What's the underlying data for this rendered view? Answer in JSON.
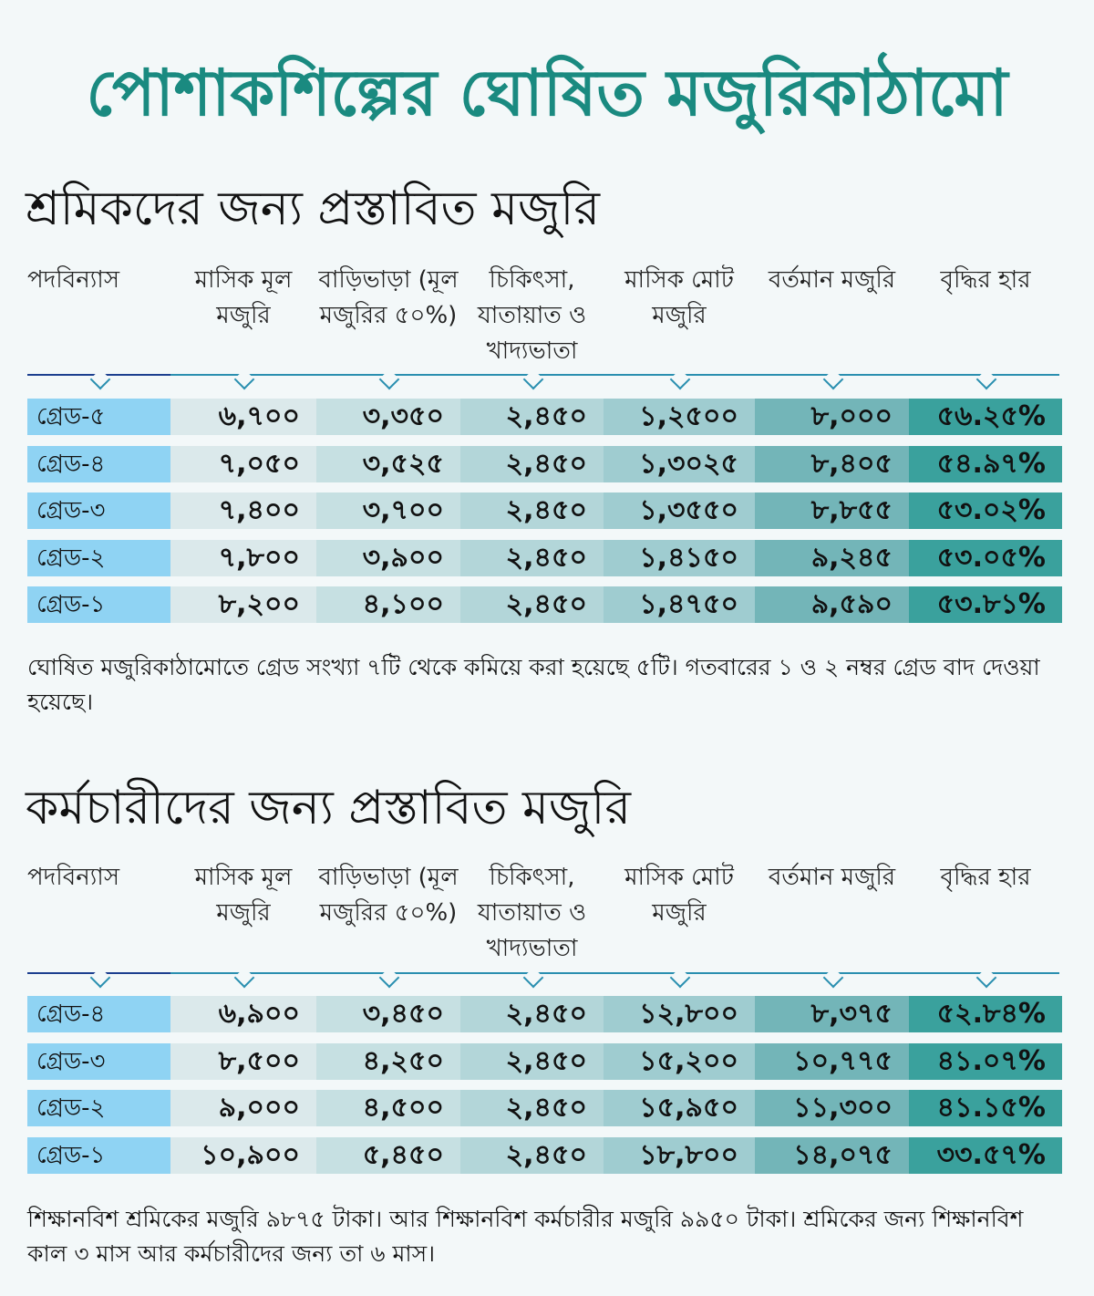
{
  "title": "পোশাকশিল্পের ঘোষিত মজুরিকাঠামো",
  "colors": {
    "title": "#1a8a80",
    "grade_cell": "#8fd3f3",
    "col_shades": [
      "#dbe9eb",
      "#c6e0e2",
      "#b3d6d9",
      "#9fccd0",
      "#73b5b8",
      "#3aa19d"
    ]
  },
  "columns": [
    "পদবিন্যাস",
    "মাসিক মূল মজুরি",
    "বাড়িভাড়া (মূল মজুরির ৫০%)",
    "চিকিৎসা, যাতায়াত ও খাদ্যভাতা",
    "মাসিক মোট মজুরি",
    "বর্তমান মজুরি",
    "বৃদ্ধির হার"
  ],
  "workers": {
    "heading": "শ্রমিকদের জন্য প্রস্তাবিত মজুরি",
    "rows": [
      [
        "গ্রেড-৫",
        "৬,৭০০",
        "৩,৩৫০",
        "২,৪৫০",
        "১,২৫০০",
        "৮,০০০",
        "৫৬.২৫%"
      ],
      [
        "গ্রেড-৪",
        "৭,০৫০",
        "৩,৫২৫",
        "২,৪৫০",
        "১,৩০২৫",
        "৮,৪০৫",
        "৫৪.৯৭%"
      ],
      [
        "গ্রেড-৩",
        "৭,৪০০",
        "৩,৭০০",
        "২,৪৫০",
        "১,৩৫৫০",
        "৮,৮৫৫",
        "৫৩.০২%"
      ],
      [
        "গ্রেড-২",
        "৭,৮০০",
        "৩,৯০০",
        "২,৪৫০",
        "১,৪১৫০",
        "৯,২৪৫",
        "৫৩.০৫%"
      ],
      [
        "গ্রেড-১",
        "৮,২০০",
        "৪,১০০",
        "২,৪৫০",
        "১,৪৭৫০",
        "৯,৫৯০",
        "৫৩.৮১%"
      ]
    ],
    "note": "ঘোষিত মজুরিকাঠামোতে গ্রেড সংখ্যা ৭টি থেকে কমিয়ে করা হয়েছে ৫টি। গতবারের ১ ও ২ নম্বর গ্রেড বাদ দেওয়া হয়েছে।"
  },
  "staff": {
    "heading": "কর্মচারীদের জন্য প্রস্তাবিত মজুরি",
    "rows": [
      [
        "গ্রেড-৪",
        "৬,৯০০",
        "৩,৪৫০",
        "২,৪৫০",
        "১২,৮০০",
        "৮,৩৭৫",
        "৫২.৮৪%"
      ],
      [
        "গ্রেড-৩",
        "৮,৫০০",
        "৪,২৫০",
        "২,৪৫০",
        "১৫,২০০",
        "১০,৭৭৫",
        "৪১.০৭%"
      ],
      [
        "গ্রেড-২",
        "৯,০০০",
        "৪,৫০০",
        "২,৪৫০",
        "১৫,৯৫০",
        "১১,৩০০",
        "৪১.১৫%"
      ],
      [
        "গ্রেড-১",
        "১০,৯০০",
        "৫,৪৫০",
        "২,৪৫০",
        "১৮,৮০০",
        "১৪,০৭৫",
        "৩৩.৫৭%"
      ]
    ],
    "note": "শিক্ষানবিশ শ্রমিকের মজুরি ৯৮৭৫ টাকা। আর শিক্ষানবিশ কর্মচারীর মজুরি ৯৯৫০ টাকা। শ্রমিকের জন্য শিক্ষানবিশ কাল ৩ মাস আর কর্মচারীদের জন্য তা ৬ মাস।"
  }
}
